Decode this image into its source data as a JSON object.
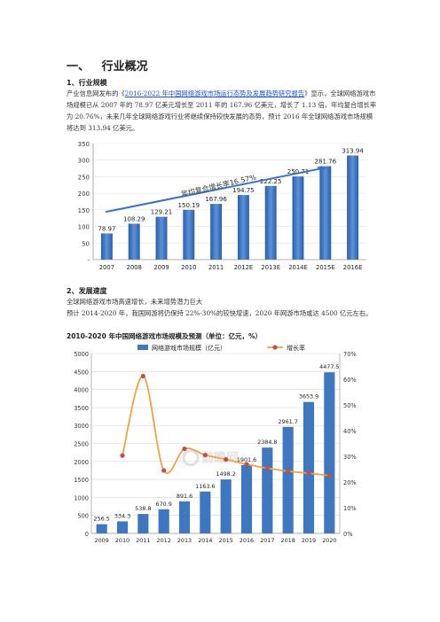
{
  "heading": "一、   行业概况",
  "section1": {
    "title": "1、行业规模",
    "para_prefix": "产业信息网发布的《",
    "link_text": "2016-2022 年中国网络游戏市场运行态势及发展趋势研究报告",
    "para_suffix": "》显示，全球网络游戏市场规模已从 2007 年的 78.97 亿美元增长至 2011 年的 167.96 亿美元，增长了 1.13 倍，年均复合增长率为 20.76%，未来几年全球网络游戏行业将继续保持较快发展的态势，预计 2016 年全球网络游戏市场规模将达到 313.94 亿美元。"
  },
  "section2": {
    "title": "2、发展速度",
    "line1": "全球网络游戏市场高速增长，未来增势潜力巨大",
    "line2": "预计 2014-2020 年，我国网游将仍保持 22%-30%的较快增速，2020 年网游市场或达 4500 亿元左右。",
    "chart_title": "2010-2020 年中国网络游戏市场规模及预测（单位：亿元，%）"
  },
  "chart_data": [
    {
      "type": "bar",
      "categories": [
        "2007",
        "2008",
        "2009",
        "2010",
        "2011",
        "2012E",
        "2013E",
        "2014E",
        "2015E",
        "2016E"
      ],
      "values": [
        78.97,
        108.29,
        129.21,
        150.19,
        167.96,
        194.75,
        222.25,
        250.71,
        281.76,
        313.94
      ],
      "yticks": [
        "350",
        "300",
        "250",
        "200",
        "150",
        "100",
        "50",
        "-"
      ],
      "ylim": [
        0,
        350
      ],
      "annotation": "年均复合增长率16.57%",
      "bar_color": "#3f76c0"
    },
    {
      "type": "bar+line",
      "categories": [
        "2009",
        "2010",
        "2011",
        "2012",
        "2013",
        "2014",
        "2015",
        "2016",
        "2017",
        "2018",
        "2019",
        "2020"
      ],
      "series": [
        {
          "name": "网络游戏市场规模（亿元）",
          "values": [
            256.5,
            334.3,
            538.8,
            670.9,
            891.6,
            1163.6,
            1498.2,
            1901.6,
            2384.8,
            2961.7,
            3653.9,
            4477.5
          ],
          "color": "#3f76c0"
        },
        {
          "name": "增长率",
          "values": [
            null,
            30.3,
            61.2,
            24.5,
            32.9,
            30.5,
            28.8,
            26.9,
            25.4,
            24.2,
            23.4,
            22.5
          ],
          "color": "#f2a040"
        }
      ],
      "yticks_left": [
        "5000",
        "4500",
        "4000",
        "3500",
        "3000",
        "2500",
        "2000",
        "1500",
        "1000",
        "500",
        "0"
      ],
      "yticks_right": [
        "70%",
        "60%",
        "50%",
        "40%",
        "30%",
        "20%",
        "10%",
        "0%"
      ],
      "ylim_left": [
        0,
        5000
      ],
      "ylim_right": [
        0,
        70
      ],
      "watermark": "前瞻网"
    }
  ]
}
